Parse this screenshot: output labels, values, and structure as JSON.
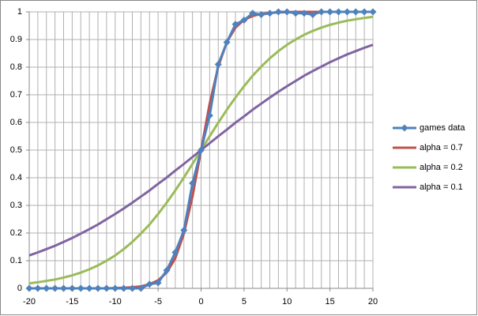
{
  "chart_data": {
    "type": "line",
    "x": [
      -20,
      -19,
      -18,
      -17,
      -16,
      -15,
      -14,
      -13,
      -12,
      -11,
      -10,
      -9,
      -8,
      -7,
      -6,
      -5,
      -4,
      -3,
      -2,
      -1,
      0,
      1,
      2,
      3,
      4,
      5,
      6,
      7,
      8,
      9,
      10,
      11,
      12,
      13,
      14,
      15,
      16,
      17,
      18,
      19,
      20
    ],
    "series": [
      {
        "name": "games data",
        "color": "#4f81bd",
        "marker": "diamond",
        "values": [
          0,
          0,
          0,
          0,
          0,
          0,
          0,
          0,
          0,
          0,
          0,
          0,
          0,
          0,
          0.015,
          0.02,
          0.065,
          0.13,
          0.21,
          0.38,
          0.5,
          0.625,
          0.81,
          0.89,
          0.955,
          0.97,
          0.995,
          0.99,
          0.995,
          1,
          1,
          0.995,
          0.995,
          0.99,
          1,
          1,
          1,
          1,
          1,
          1,
          1
        ]
      },
      {
        "name": "alpha = 0.7",
        "color": "#c0504d",
        "values": [
          0,
          0,
          0,
          0,
          0,
          0,
          0,
          0,
          0,
          0,
          0.001,
          0.002,
          0.004,
          0.007,
          0.015,
          0.029,
          0.057,
          0.109,
          0.198,
          0.332,
          0.5,
          0.668,
          0.802,
          0.891,
          0.943,
          0.971,
          0.985,
          0.993,
          0.996,
          0.998,
          0.999,
          1,
          1,
          1,
          1,
          1,
          1,
          1,
          1,
          1,
          1
        ]
      },
      {
        "name": "alpha = 0.2",
        "color": "#9bbb59",
        "values": [
          0.018,
          0.022,
          0.027,
          0.032,
          0.039,
          0.047,
          0.057,
          0.069,
          0.083,
          0.1,
          0.119,
          0.142,
          0.168,
          0.198,
          0.231,
          0.269,
          0.31,
          0.354,
          0.401,
          0.45,
          0.5,
          0.55,
          0.599,
          0.646,
          0.69,
          0.731,
          0.769,
          0.802,
          0.832,
          0.858,
          0.881,
          0.9,
          0.917,
          0.931,
          0.943,
          0.953,
          0.961,
          0.968,
          0.973,
          0.978,
          0.982
        ]
      },
      {
        "name": "alpha = 0.1",
        "color": "#8064a2",
        "values": [
          0.119,
          0.13,
          0.142,
          0.154,
          0.168,
          0.182,
          0.198,
          0.214,
          0.231,
          0.25,
          0.269,
          0.289,
          0.31,
          0.332,
          0.354,
          0.378,
          0.401,
          0.426,
          0.45,
          0.475,
          0.5,
          0.525,
          0.55,
          0.574,
          0.599,
          0.622,
          0.646,
          0.668,
          0.69,
          0.711,
          0.731,
          0.75,
          0.769,
          0.786,
          0.802,
          0.818,
          0.832,
          0.846,
          0.858,
          0.87,
          0.881
        ]
      }
    ],
    "xlim": [
      -20,
      20
    ],
    "xticks": [
      -20,
      -15,
      -10,
      -5,
      0,
      5,
      10,
      15,
      20
    ],
    "ylim": [
      0,
      1
    ],
    "yticks": [
      0,
      0.1,
      0.2,
      0.3,
      0.4,
      0.5,
      0.6,
      0.7,
      0.8,
      0.9,
      1
    ],
    "grid": true,
    "legend": "right"
  }
}
